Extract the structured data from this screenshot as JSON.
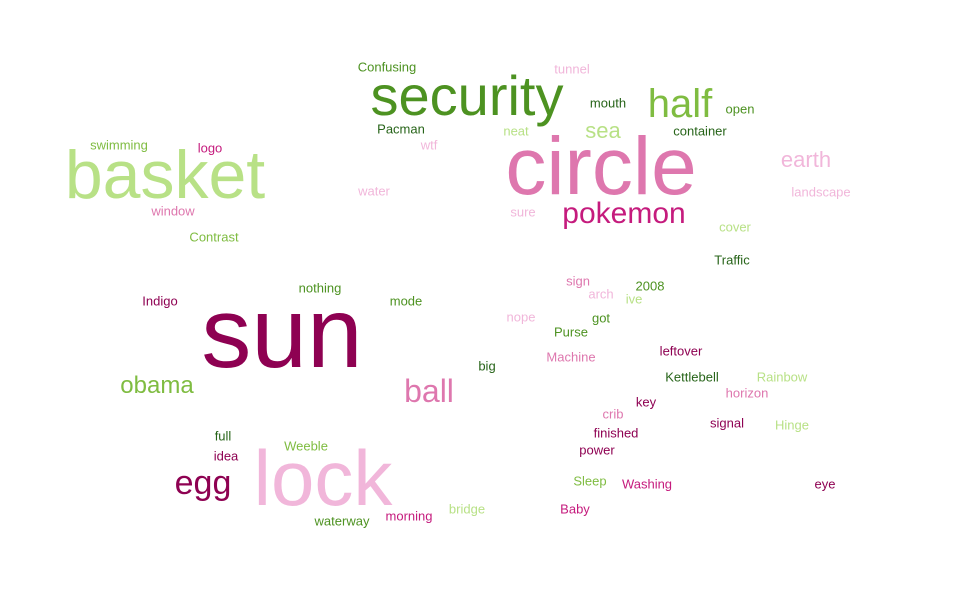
{
  "words": [
    {
      "text": "sun",
      "size": 100,
      "color": "#8e0152"
    },
    {
      "text": "circle",
      "size": 82,
      "color": "#de77ae"
    },
    {
      "text": "lock",
      "size": 78,
      "color": "#f1b6da"
    },
    {
      "text": "basket",
      "size": 68,
      "color": "#b8e186"
    },
    {
      "text": "security",
      "size": 56,
      "color": "#4d9221"
    },
    {
      "text": "half",
      "size": 40,
      "color": "#7fbc41"
    },
    {
      "text": "pokemon",
      "size": 30,
      "color": "#c51b7d"
    },
    {
      "text": "egg",
      "size": 34,
      "color": "#8e0152"
    },
    {
      "text": "ball",
      "size": 32,
      "color": "#de77ae"
    },
    {
      "text": "obama",
      "size": 24,
      "color": "#7fbc41"
    },
    {
      "text": "earth",
      "size": 22,
      "color": "#f1b6da"
    },
    {
      "text": "sea",
      "size": 22,
      "color": "#b8e186"
    },
    {
      "text": "Confusing",
      "size": 13,
      "color": "#4d9221"
    },
    {
      "text": "tunnel",
      "size": 13,
      "color": "#f1b6da"
    },
    {
      "text": "mouth",
      "size": 13,
      "color": "#276419"
    },
    {
      "text": "open",
      "size": 13,
      "color": "#4d9221"
    },
    {
      "text": "Pacman",
      "size": 13,
      "color": "#276419"
    },
    {
      "text": "neat",
      "size": 13,
      "color": "#b8e186"
    },
    {
      "text": "container",
      "size": 13,
      "color": "#276419"
    },
    {
      "text": "swimming",
      "size": 13,
      "color": "#7fbc41"
    },
    {
      "text": "logo",
      "size": 13,
      "color": "#c51b7d"
    },
    {
      "text": "wtf",
      "size": 13,
      "color": "#f1b6da"
    },
    {
      "text": "water",
      "size": 13,
      "color": "#f1b6da"
    },
    {
      "text": "window",
      "size": 13,
      "color": "#de77ae"
    },
    {
      "text": "sure",
      "size": 13,
      "color": "#f1b6da"
    },
    {
      "text": "landscape",
      "size": 13,
      "color": "#f1b6da"
    },
    {
      "text": "Contrast",
      "size": 13,
      "color": "#7fbc41"
    },
    {
      "text": "cover",
      "size": 13,
      "color": "#b8e186"
    },
    {
      "text": "Traffic",
      "size": 13,
      "color": "#276419"
    },
    {
      "text": "sign",
      "size": 13,
      "color": "#de77ae"
    },
    {
      "text": "2008",
      "size": 13,
      "color": "#4d9221"
    },
    {
      "text": "arch",
      "size": 13,
      "color": "#f1b6da"
    },
    {
      "text": "ive",
      "size": 13,
      "color": "#b8e186"
    },
    {
      "text": "nothing",
      "size": 13,
      "color": "#4d9221"
    },
    {
      "text": "Indigo",
      "size": 13,
      "color": "#8e0152"
    },
    {
      "text": "mode",
      "size": 13,
      "color": "#4d9221"
    },
    {
      "text": "nope",
      "size": 13,
      "color": "#f1b6da"
    },
    {
      "text": "got",
      "size": 13,
      "color": "#4d9221"
    },
    {
      "text": "Purse",
      "size": 13,
      "color": "#4d9221"
    },
    {
      "text": "Machine",
      "size": 13,
      "color": "#de77ae"
    },
    {
      "text": "leftover",
      "size": 13,
      "color": "#8e0152"
    },
    {
      "text": "big",
      "size": 13,
      "color": "#276419"
    },
    {
      "text": "Kettlebell",
      "size": 13,
      "color": "#276419"
    },
    {
      "text": "Rainbow",
      "size": 13,
      "color": "#b8e186"
    },
    {
      "text": "horizon",
      "size": 13,
      "color": "#de77ae"
    },
    {
      "text": "key",
      "size": 13,
      "color": "#8e0152"
    },
    {
      "text": "crib",
      "size": 13,
      "color": "#de77ae"
    },
    {
      "text": "signal",
      "size": 13,
      "color": "#8e0152"
    },
    {
      "text": "Hinge",
      "size": 13,
      "color": "#b8e186"
    },
    {
      "text": "finished",
      "size": 13,
      "color": "#8e0152"
    },
    {
      "text": "full",
      "size": 13,
      "color": "#276419"
    },
    {
      "text": "Weeble",
      "size": 13,
      "color": "#7fbc41"
    },
    {
      "text": "idea",
      "size": 13,
      "color": "#8e0152"
    },
    {
      "text": "power",
      "size": 13,
      "color": "#8e0152"
    },
    {
      "text": "Sleep",
      "size": 13,
      "color": "#7fbc41"
    },
    {
      "text": "Washing",
      "size": 13,
      "color": "#c51b7d"
    },
    {
      "text": "eye",
      "size": 13,
      "color": "#8e0152"
    },
    {
      "text": "bridge",
      "size": 13,
      "color": "#b8e186"
    },
    {
      "text": "Baby",
      "size": 13,
      "color": "#c51b7d"
    },
    {
      "text": "waterway",
      "size": 13,
      "color": "#4d9221"
    },
    {
      "text": "morning",
      "size": 13,
      "color": "#c51b7d"
    }
  ]
}
